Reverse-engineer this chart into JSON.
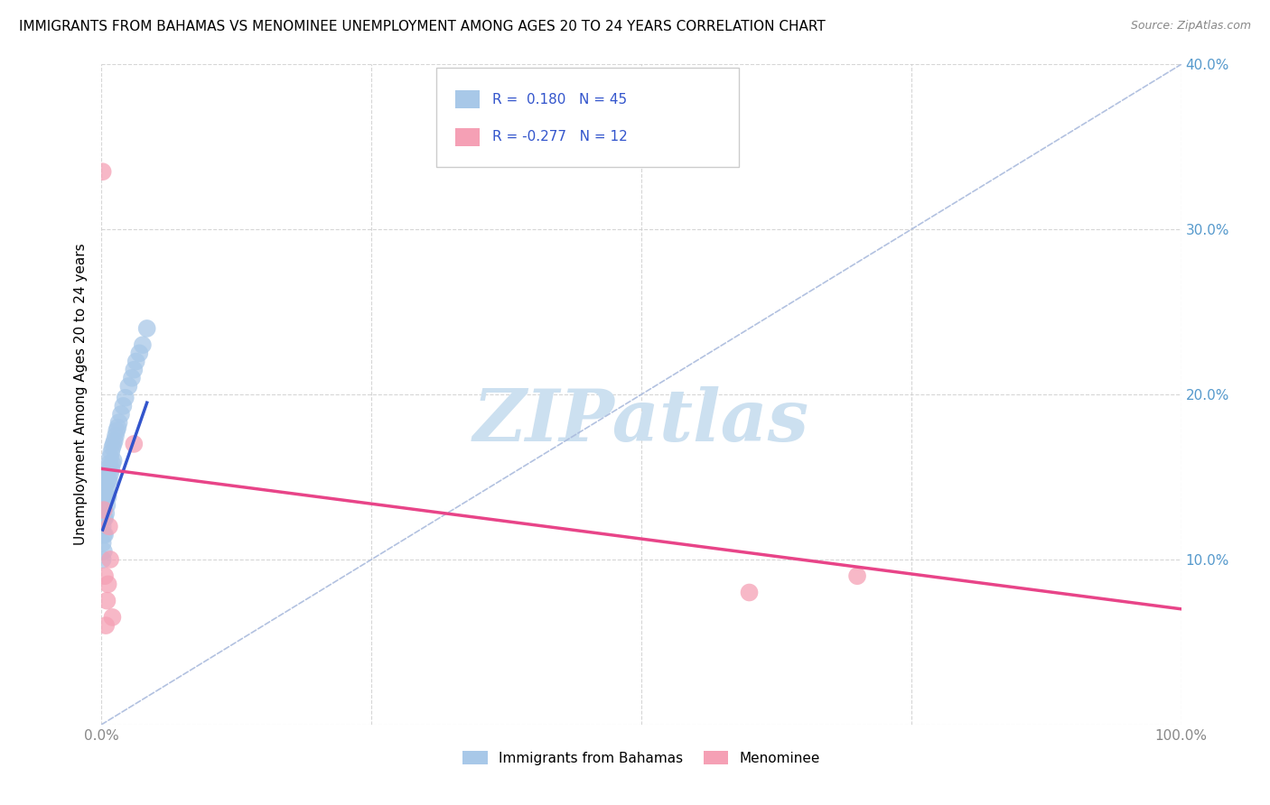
{
  "title": "IMMIGRANTS FROM BAHAMAS VS MENOMINEE UNEMPLOYMENT AMONG AGES 20 TO 24 YEARS CORRELATION CHART",
  "source": "Source: ZipAtlas.com",
  "ylabel": "Unemployment Among Ages 20 to 24 years",
  "xlim": [
    0,
    1.0
  ],
  "ylim": [
    0,
    0.4
  ],
  "xticks": [
    0.0,
    0.25,
    0.5,
    0.75,
    1.0
  ],
  "yticks": [
    0.0,
    0.1,
    0.2,
    0.3,
    0.4
  ],
  "legend_labels": [
    "Immigrants from Bahamas",
    "Menominee"
  ],
  "r_blue": 0.18,
  "n_blue": 45,
  "r_pink": -0.277,
  "n_pink": 12,
  "blue_color": "#a8c8e8",
  "pink_color": "#f5a0b5",
  "blue_line_color": "#3355cc",
  "pink_line_color": "#e84488",
  "diag_color": "#aabbdd",
  "scatter_blue_x": [
    0.001,
    0.001,
    0.001,
    0.002,
    0.002,
    0.002,
    0.002,
    0.003,
    0.003,
    0.003,
    0.003,
    0.004,
    0.004,
    0.004,
    0.005,
    0.005,
    0.005,
    0.006,
    0.006,
    0.006,
    0.007,
    0.007,
    0.008,
    0.008,
    0.009,
    0.009,
    0.01,
    0.01,
    0.011,
    0.011,
    0.012,
    0.013,
    0.014,
    0.015,
    0.016,
    0.018,
    0.02,
    0.022,
    0.025,
    0.028,
    0.03,
    0.032,
    0.035,
    0.038,
    0.042
  ],
  "scatter_blue_y": [
    0.12,
    0.11,
    0.1,
    0.13,
    0.125,
    0.115,
    0.105,
    0.14,
    0.135,
    0.125,
    0.115,
    0.145,
    0.138,
    0.128,
    0.15,
    0.143,
    0.133,
    0.155,
    0.148,
    0.138,
    0.158,
    0.148,
    0.162,
    0.152,
    0.165,
    0.155,
    0.168,
    0.158,
    0.17,
    0.16,
    0.172,
    0.175,
    0.178,
    0.18,
    0.183,
    0.188,
    0.193,
    0.198,
    0.205,
    0.21,
    0.215,
    0.22,
    0.225,
    0.23,
    0.24
  ],
  "scatter_pink_x": [
    0.001,
    0.002,
    0.003,
    0.004,
    0.005,
    0.006,
    0.007,
    0.008,
    0.03,
    0.6,
    0.7,
    0.01
  ],
  "scatter_pink_y": [
    0.335,
    0.13,
    0.09,
    0.06,
    0.075,
    0.085,
    0.12,
    0.1,
    0.17,
    0.08,
    0.09,
    0.065
  ],
  "blue_line_x": [
    0.001,
    0.042
  ],
  "blue_line_y": [
    0.118,
    0.195
  ],
  "pink_line_x": [
    0.0,
    1.0
  ],
  "pink_line_y": [
    0.155,
    0.07
  ],
  "watermark_text": "ZIPatlas",
  "watermark_color": "#cce0f0",
  "background_color": "#ffffff",
  "grid_color": "#cccccc",
  "title_fontsize": 11,
  "axis_label_fontsize": 11,
  "tick_fontsize": 11,
  "right_tick_color": "#5599cc",
  "legend_bottom_labels": [
    "Immigrants from Bahamas",
    "Menominee"
  ]
}
